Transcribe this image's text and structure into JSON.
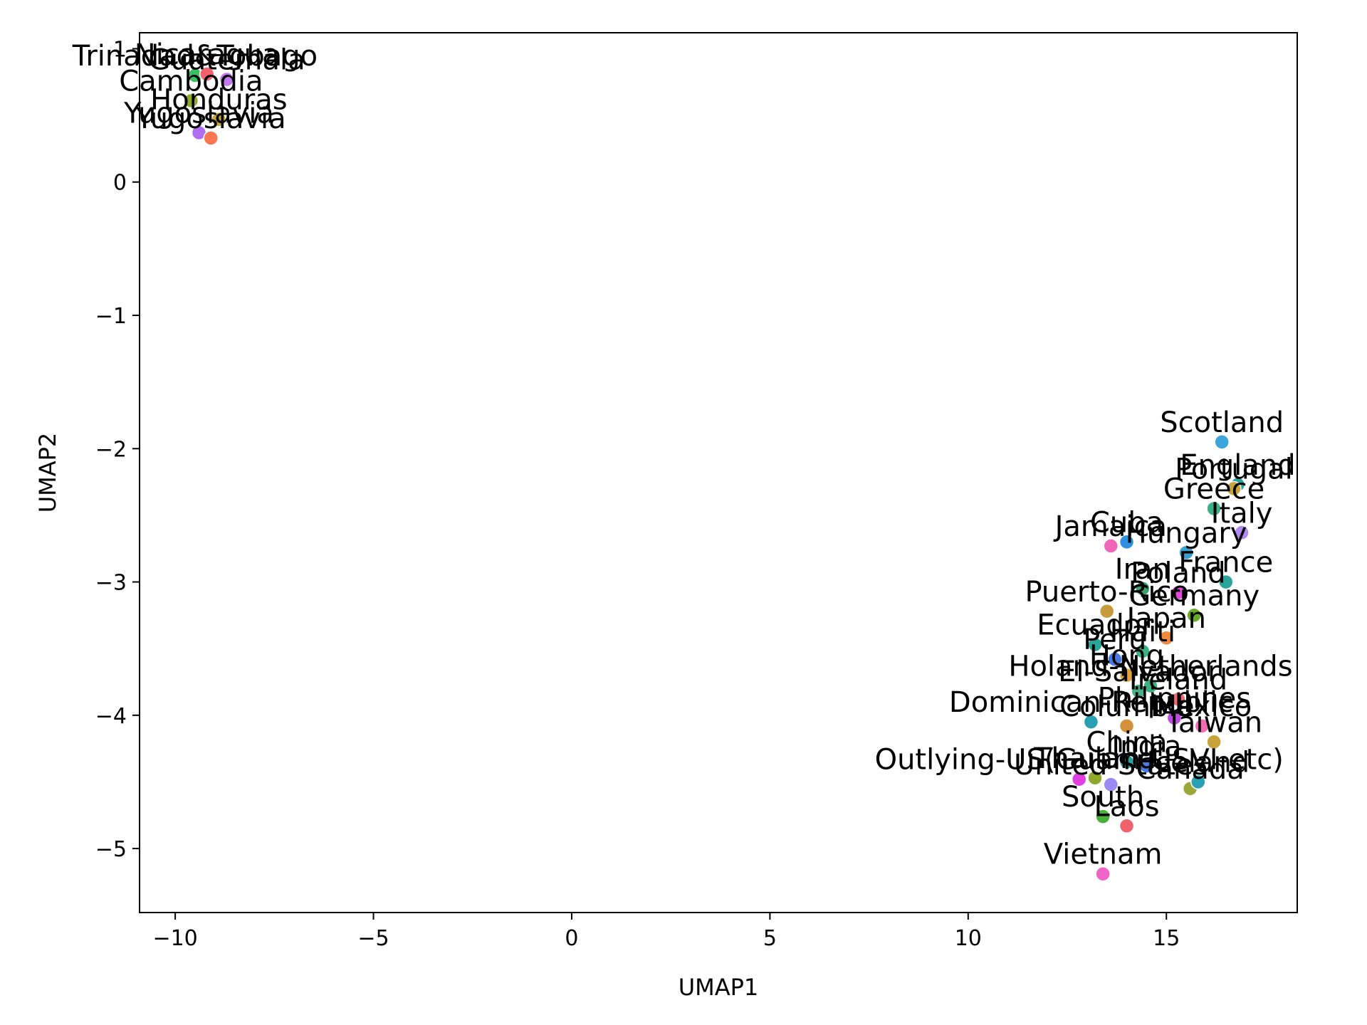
{
  "chart_data": {
    "type": "scatter",
    "title": "",
    "xlabel": "UMAP1",
    "ylabel": "UMAP2",
    "xlim": [
      -10.9,
      18.3
    ],
    "ylim": [
      -5.48,
      1.12
    ],
    "xticks": [
      -10,
      -5,
      0,
      5,
      10,
      15
    ],
    "yticks": [
      -5,
      -4,
      -3,
      -2,
      -1,
      0,
      1
    ],
    "xtick_labels": [
      "−10",
      "−5",
      "0",
      "5",
      "10",
      "15"
    ],
    "ytick_labels": [
      "−5",
      "−4",
      "−3",
      "−2",
      "−1",
      "0",
      "1"
    ],
    "grid": false,
    "points": [
      {
        "label": "Trinadad&Tobago",
        "x": -9.5,
        "y": 0.8,
        "color": "#3bbf63"
      },
      {
        "label": "Nicaragua",
        "x": -9.2,
        "y": 0.81,
        "color": "#f0616b"
      },
      {
        "label": "Guatemala",
        "x": -8.7,
        "y": 0.77,
        "color": "#c178f2"
      },
      {
        "label": "Cambodia",
        "x": -9.6,
        "y": 0.61,
        "color": "#8fa82c"
      },
      {
        "label": "Honduras",
        "x": -8.9,
        "y": 0.47,
        "color": "#c7a43b"
      },
      {
        "label": "Yugoslavia",
        "x": -9.4,
        "y": 0.37,
        "color": "#b06ef2"
      },
      {
        "label": "Yugoslavia",
        "x": -9.1,
        "y": 0.33,
        "color": "#fa7552"
      },
      {
        "label": "Scotland",
        "x": 16.4,
        "y": -1.95,
        "color": "#3ba5dc"
      },
      {
        "label": "England",
        "x": 16.8,
        "y": -2.27,
        "color": "#2aa39b"
      },
      {
        "label": "Portugal",
        "x": 16.7,
        "y": -2.3,
        "color": "#c7a43b"
      },
      {
        "label": "Greece",
        "x": 16.2,
        "y": -2.45,
        "color": "#3bb083"
      },
      {
        "label": "Italy",
        "x": 16.9,
        "y": -2.63,
        "color": "#b08af2"
      },
      {
        "label": "Jamaica",
        "x": 13.6,
        "y": -2.73,
        "color": "#f065b8"
      },
      {
        "label": "Cuba",
        "x": 14.0,
        "y": -2.7,
        "color": "#2e90e0"
      },
      {
        "label": "Hungary",
        "x": 15.5,
        "y": -2.78,
        "color": "#3aa0cf"
      },
      {
        "label": "France",
        "x": 16.5,
        "y": -3.0,
        "color": "#2aa39b"
      },
      {
        "label": "Iran",
        "x": 14.4,
        "y": -3.05,
        "color": "#3b9f6a"
      },
      {
        "label": "Poland",
        "x": 15.3,
        "y": -3.08,
        "color": "#e04ad8"
      },
      {
        "label": "Puerto-Rico",
        "x": 13.5,
        "y": -3.22,
        "color": "#c79a3b"
      },
      {
        "label": "Germany",
        "x": 15.7,
        "y": -3.25,
        "color": "#6aaa2a"
      },
      {
        "label": "Japan",
        "x": 15.0,
        "y": -3.42,
        "color": "#ee8a3a"
      },
      {
        "label": "Ecuador",
        "x": 13.2,
        "y": -3.47,
        "color": "#2aa39b"
      },
      {
        "label": "Haiti",
        "x": 14.4,
        "y": -3.52,
        "color": "#3bb083"
      },
      {
        "label": "Peru",
        "x": 13.7,
        "y": -3.58,
        "color": "#4a7ae0"
      },
      {
        "label": "Hong",
        "x": 14.0,
        "y": -3.7,
        "color": "#e0a23b"
      },
      {
        "label": "Holand-Netherlands",
        "x": 14.6,
        "y": -3.78,
        "color": "#3bb083"
      },
      {
        "label": "Ireland",
        "x": 15.3,
        "y": -3.88,
        "color": "#f06b6b"
      },
      {
        "label": "El-Salvador",
        "x": 14.3,
        "y": -3.82,
        "color": "#4ab08a"
      },
      {
        "label": "Dominican-Republic",
        "x": 13.1,
        "y": -4.05,
        "color": "#2aa0b4"
      },
      {
        "label": "Columbia",
        "x": 14.0,
        "y": -4.08,
        "color": "#d4913b"
      },
      {
        "label": "Philippines",
        "x": 15.2,
        "y": -4.02,
        "color": "#c04ae0"
      },
      {
        "label": "Mexico",
        "x": 15.9,
        "y": -4.08,
        "color": "#f06bb0"
      },
      {
        "label": "Taiwan",
        "x": 16.2,
        "y": -4.2,
        "color": "#c7a43b"
      },
      {
        "label": "China",
        "x": 14.0,
        "y": -4.35,
        "color": "#2aa39b"
      },
      {
        "label": "Outlying-US(Guam-USVI-etc)",
        "x": 12.8,
        "y": -4.48,
        "color": "#e040e0"
      },
      {
        "label": "Thailand",
        "x": 13.2,
        "y": -4.47,
        "color": "#8fa82c"
      },
      {
        "label": "United-States",
        "x": 13.6,
        "y": -4.52,
        "color": "#9a8af2"
      },
      {
        "label": "India",
        "x": 14.5,
        "y": -4.38,
        "color": "#4a7ae0"
      },
      {
        "label": "Canada",
        "x": 15.6,
        "y": -4.55,
        "color": "#9aa83b"
      },
      {
        "label": "Iceland",
        "x": 15.8,
        "y": -4.5,
        "color": "#2aa0b4"
      },
      {
        "label": "South",
        "x": 13.4,
        "y": -4.76,
        "color": "#4ab03b"
      },
      {
        "label": "Laos",
        "x": 14.0,
        "y": -4.83,
        "color": "#f0616b"
      },
      {
        "label": "Vietnam",
        "x": 13.4,
        "y": -5.19,
        "color": "#f065c8"
      }
    ]
  }
}
